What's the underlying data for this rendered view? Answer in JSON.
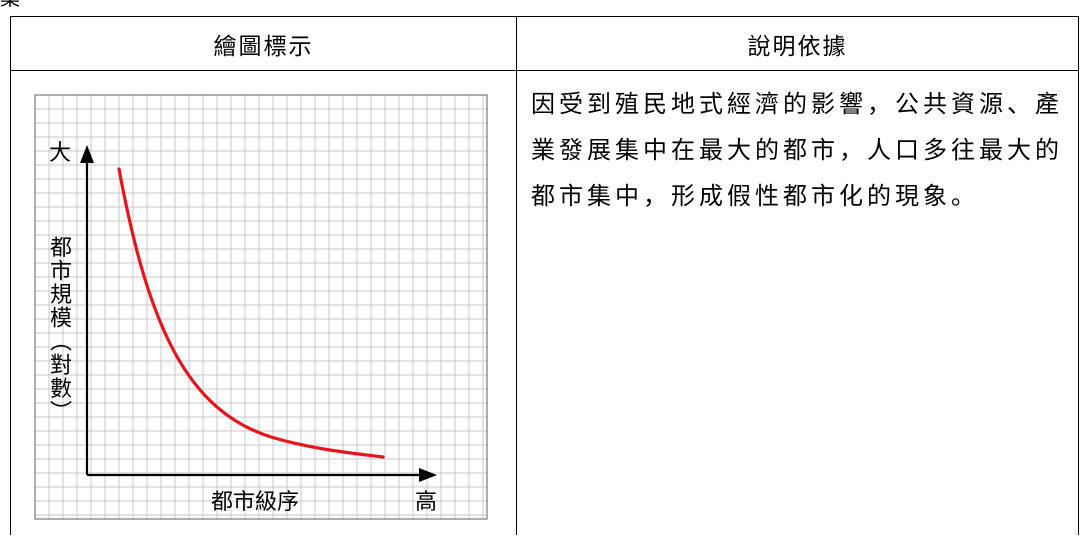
{
  "corner_mark": "案",
  "table": {
    "header_left": "繪圖標示",
    "header_right": "說明依據"
  },
  "graph": {
    "y_axis_top_label": "大",
    "y_axis_title_chars": [
      "都",
      "市",
      "規",
      "模",
      "︵",
      "對",
      "數",
      "︶"
    ],
    "x_axis_title": "都市級序",
    "x_axis_end_label": "高",
    "curve_color": "#e8141b",
    "grid_color": "#c8c8c8"
  },
  "explanation": "因受到殖民地式經濟的影響，公共資源、產業發展集中在最大的都市，人口多往最大的都市集中，形成假性都市化的現象。"
}
